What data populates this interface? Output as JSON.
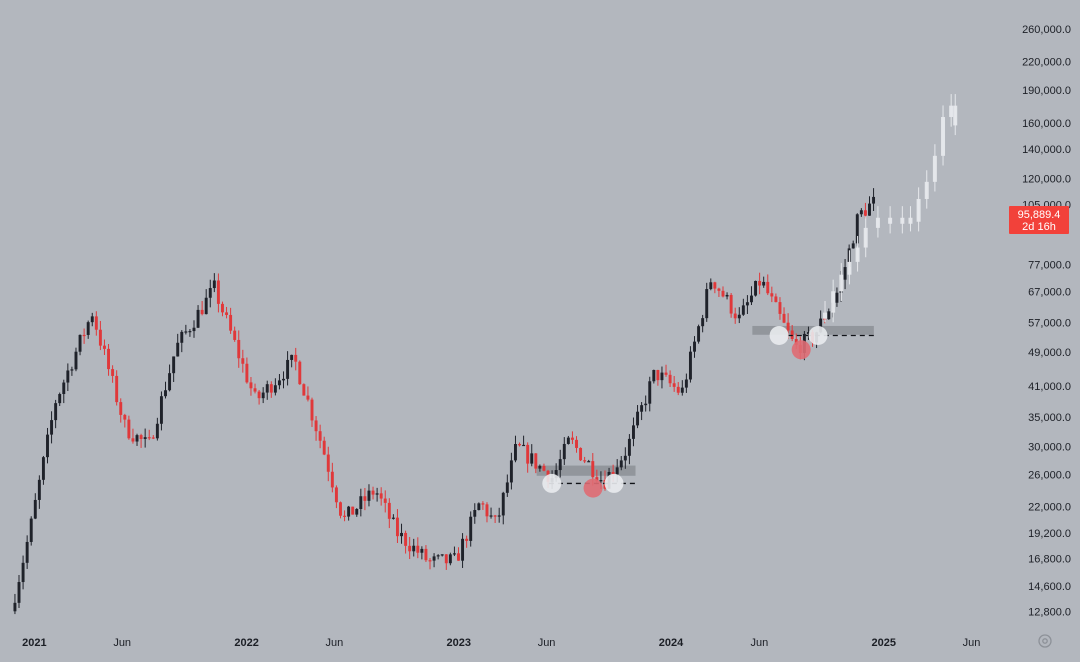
{
  "chart_data": {
    "type": "candlestick",
    "title": "",
    "xlabel": "",
    "ylabel": "",
    "y_scale": "log",
    "grid": false,
    "colors": {
      "background": "#b3b7be",
      "up": "#1f222a",
      "down": "#e0383a",
      "projection": "#e6e8ec",
      "support_zone": "#8c9096",
      "marker_white": "#e9ebee",
      "marker_red": "#df6b73",
      "price_tag": "#f2413a"
    },
    "y_ticks": [
      "260,000.0",
      "220,000.0",
      "190,000.0",
      "160,000.0",
      "140,000.0",
      "120,000.0",
      "105,000.0",
      "77,000.0",
      "67,000.0",
      "57,000.0",
      "49,000.0",
      "41,000.0",
      "35,000.0",
      "30,000.0",
      "26,000.0",
      "22,000.0",
      "19,200.0",
      "16,800.0",
      "14,600.0",
      "12,800.0"
    ],
    "y_tick_values": [
      260000,
      220000,
      190000,
      160000,
      140000,
      120000,
      105000,
      77000,
      67000,
      57000,
      49000,
      41000,
      35000,
      30000,
      26000,
      22000,
      19200,
      16800,
      14600,
      12800
    ],
    "ylim": [
      11500,
      290000
    ],
    "x_ticks": [
      {
        "label": "2021",
        "date": "2021-01-01",
        "year": true
      },
      {
        "label": "Jun",
        "date": "2021-06-01",
        "year": false
      },
      {
        "label": "2022",
        "date": "2022-01-01",
        "year": true
      },
      {
        "label": "Jun",
        "date": "2022-06-01",
        "year": false
      },
      {
        "label": "2023",
        "date": "2023-01-01",
        "year": true
      },
      {
        "label": "Jun",
        "date": "2023-06-01",
        "year": false
      },
      {
        "label": "2024",
        "date": "2024-01-01",
        "year": true
      },
      {
        "label": "Jun",
        "date": "2024-06-01",
        "year": false
      },
      {
        "label": "2025",
        "date": "2025-01-01",
        "year": true
      },
      {
        "label": "Jun",
        "date": "2025-06-01",
        "year": false
      }
    ],
    "xlim": [
      "2020-11-20",
      "2025-07-20"
    ],
    "key_levels": [
      {
        "date": "2020-11-25",
        "price": 12800
      },
      {
        "date": "2020-12-27",
        "price": 19200
      },
      {
        "date": "2021-02-10",
        "price": 38000
      },
      {
        "date": "2021-04-14",
        "price": 60000
      },
      {
        "date": "2021-06-10",
        "price": 33000
      },
      {
        "date": "2021-07-20",
        "price": 30000
      },
      {
        "date": "2021-09-05",
        "price": 50000
      },
      {
        "date": "2021-11-10",
        "price": 68000
      },
      {
        "date": "2022-01-20",
        "price": 38000
      },
      {
        "date": "2022-03-28",
        "price": 47000
      },
      {
        "date": "2022-05-15",
        "price": 30000
      },
      {
        "date": "2022-06-20",
        "price": 20500
      },
      {
        "date": "2022-08-14",
        "price": 24000
      },
      {
        "date": "2022-09-20",
        "price": 19200
      },
      {
        "date": "2022-11-15",
        "price": 16500
      },
      {
        "date": "2022-12-30",
        "price": 16600
      },
      {
        "date": "2023-02-10",
        "price": 22500
      },
      {
        "date": "2023-03-10",
        "price": 20000
      },
      {
        "date": "2023-04-14",
        "price": 30000
      },
      {
        "date": "2023-06-15",
        "price": 25500
      },
      {
        "date": "2023-07-14",
        "price": 31000
      },
      {
        "date": "2023-09-11",
        "price": 25000
      },
      {
        "date": "2023-10-20",
        "price": 29500
      },
      {
        "date": "2023-12-08",
        "price": 44000
      },
      {
        "date": "2024-01-23",
        "price": 39500
      },
      {
        "date": "2024-03-14",
        "price": 72000
      },
      {
        "date": "2024-05-01",
        "price": 58000
      },
      {
        "date": "2024-06-07",
        "price": 71000
      },
      {
        "date": "2024-08-05",
        "price": 50000
      },
      {
        "date": "2024-09-06",
        "price": 53000
      },
      {
        "date": "2024-10-20",
        "price": 68000
      },
      {
        "date": "2024-11-22",
        "price": 99000
      },
      {
        "date": "2024-12-17",
        "price": 106000
      }
    ],
    "projection": [
      {
        "date": "2024-09-22",
        "price": 60000
      },
      {
        "date": "2024-10-06",
        "price": 67000
      },
      {
        "date": "2024-10-20",
        "price": 73000
      },
      {
        "date": "2024-11-03",
        "price": 78000
      },
      {
        "date": "2024-11-17",
        "price": 84000
      },
      {
        "date": "2024-12-01",
        "price": 93000
      },
      {
        "date": "2024-12-22",
        "price": 98000
      },
      {
        "date": "2025-01-12",
        "price": 95000
      },
      {
        "date": "2025-02-02",
        "price": 98000
      },
      {
        "date": "2025-02-16",
        "price": 96000
      },
      {
        "date": "2025-03-02",
        "price": 108000
      },
      {
        "date": "2025-03-16",
        "price": 118000
      },
      {
        "date": "2025-03-30",
        "price": 135000
      },
      {
        "date": "2025-04-13",
        "price": 165000
      },
      {
        "date": "2025-04-27",
        "price": 175000
      },
      {
        "date": "2025-05-04",
        "price": 158000
      }
    ],
    "support_zones": [
      {
        "start": "2023-05-15",
        "end": "2023-11-01",
        "low": 25800,
        "high": 27200
      },
      {
        "start": "2024-05-20",
        "end": "2024-12-15",
        "low": 53500,
        "high": 56000
      }
    ],
    "dashed_levels": [
      {
        "start": "2023-06-05",
        "end": "2023-11-01",
        "price": 24800
      },
      {
        "start": "2024-07-20",
        "end": "2024-12-15",
        "price": 53300
      }
    ],
    "markers": [
      {
        "date": "2023-06-10",
        "price": 24800,
        "kind": "white"
      },
      {
        "date": "2023-08-20",
        "price": 24200,
        "kind": "red"
      },
      {
        "date": "2023-09-25",
        "price": 24800,
        "kind": "white"
      },
      {
        "date": "2024-07-05",
        "price": 53300,
        "kind": "white"
      },
      {
        "date": "2024-08-12",
        "price": 49500,
        "kind": "red"
      },
      {
        "date": "2024-09-10",
        "price": 53300,
        "kind": "white"
      }
    ],
    "current_price": {
      "value": "95,889.4",
      "price": 95889.4,
      "countdown": "2d 16h"
    }
  }
}
